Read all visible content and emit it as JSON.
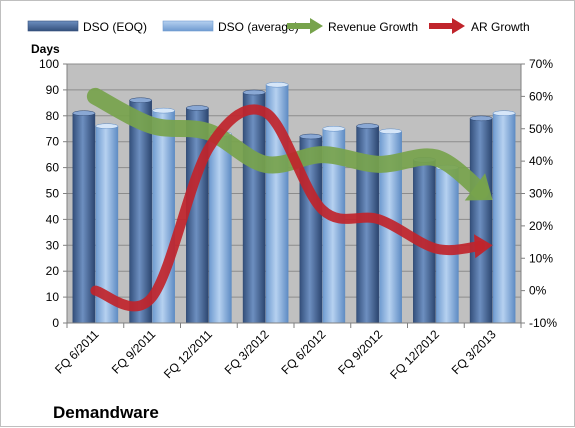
{
  "chart_data": {
    "type": "bar",
    "title": "",
    "company_label": "Demandware",
    "ylabel": "Days",
    "ylim": [
      0,
      100
    ],
    "y_ticks": [
      0,
      10,
      20,
      30,
      40,
      50,
      60,
      70,
      80,
      90,
      100
    ],
    "y2lim": [
      -10,
      70
    ],
    "y2_ticks": [
      "-10%",
      "0%",
      "10%",
      "20%",
      "30%",
      "40%",
      "50%",
      "60%",
      "70%"
    ],
    "y2_tick_values": [
      -10,
      0,
      10,
      20,
      30,
      40,
      50,
      60,
      70
    ],
    "categories": [
      "FQ 6/2011",
      "FQ 9/2011",
      "FQ 12/2011",
      "FQ 3/2012",
      "FQ 6/2012",
      "FQ 9/2012",
      "FQ 12/2012",
      "FQ 3/2013"
    ],
    "grid": true,
    "legend_position": "top",
    "series": [
      {
        "name": "DSO (EOQ)",
        "type": "bar",
        "axis": "left",
        "color": "#4f6f9f",
        "values": [
          81,
          86,
          83,
          89,
          72,
          76,
          63,
          79
        ]
      },
      {
        "name": "DSO (average)",
        "type": "bar",
        "axis": "left",
        "color": "#8eb4e3",
        "values": [
          76,
          82,
          73,
          92,
          75,
          74,
          60,
          81
        ]
      },
      {
        "name": "Revenue Growth",
        "type": "line",
        "axis": "right",
        "color": "#77a34c",
        "values": [
          60,
          51,
          49,
          39,
          42,
          39,
          41,
          28
        ]
      },
      {
        "name": "AR Growth",
        "type": "line",
        "axis": "right",
        "color": "#c0242b",
        "values": [
          0,
          -2,
          44,
          55,
          25,
          22,
          13,
          14
        ]
      }
    ]
  }
}
